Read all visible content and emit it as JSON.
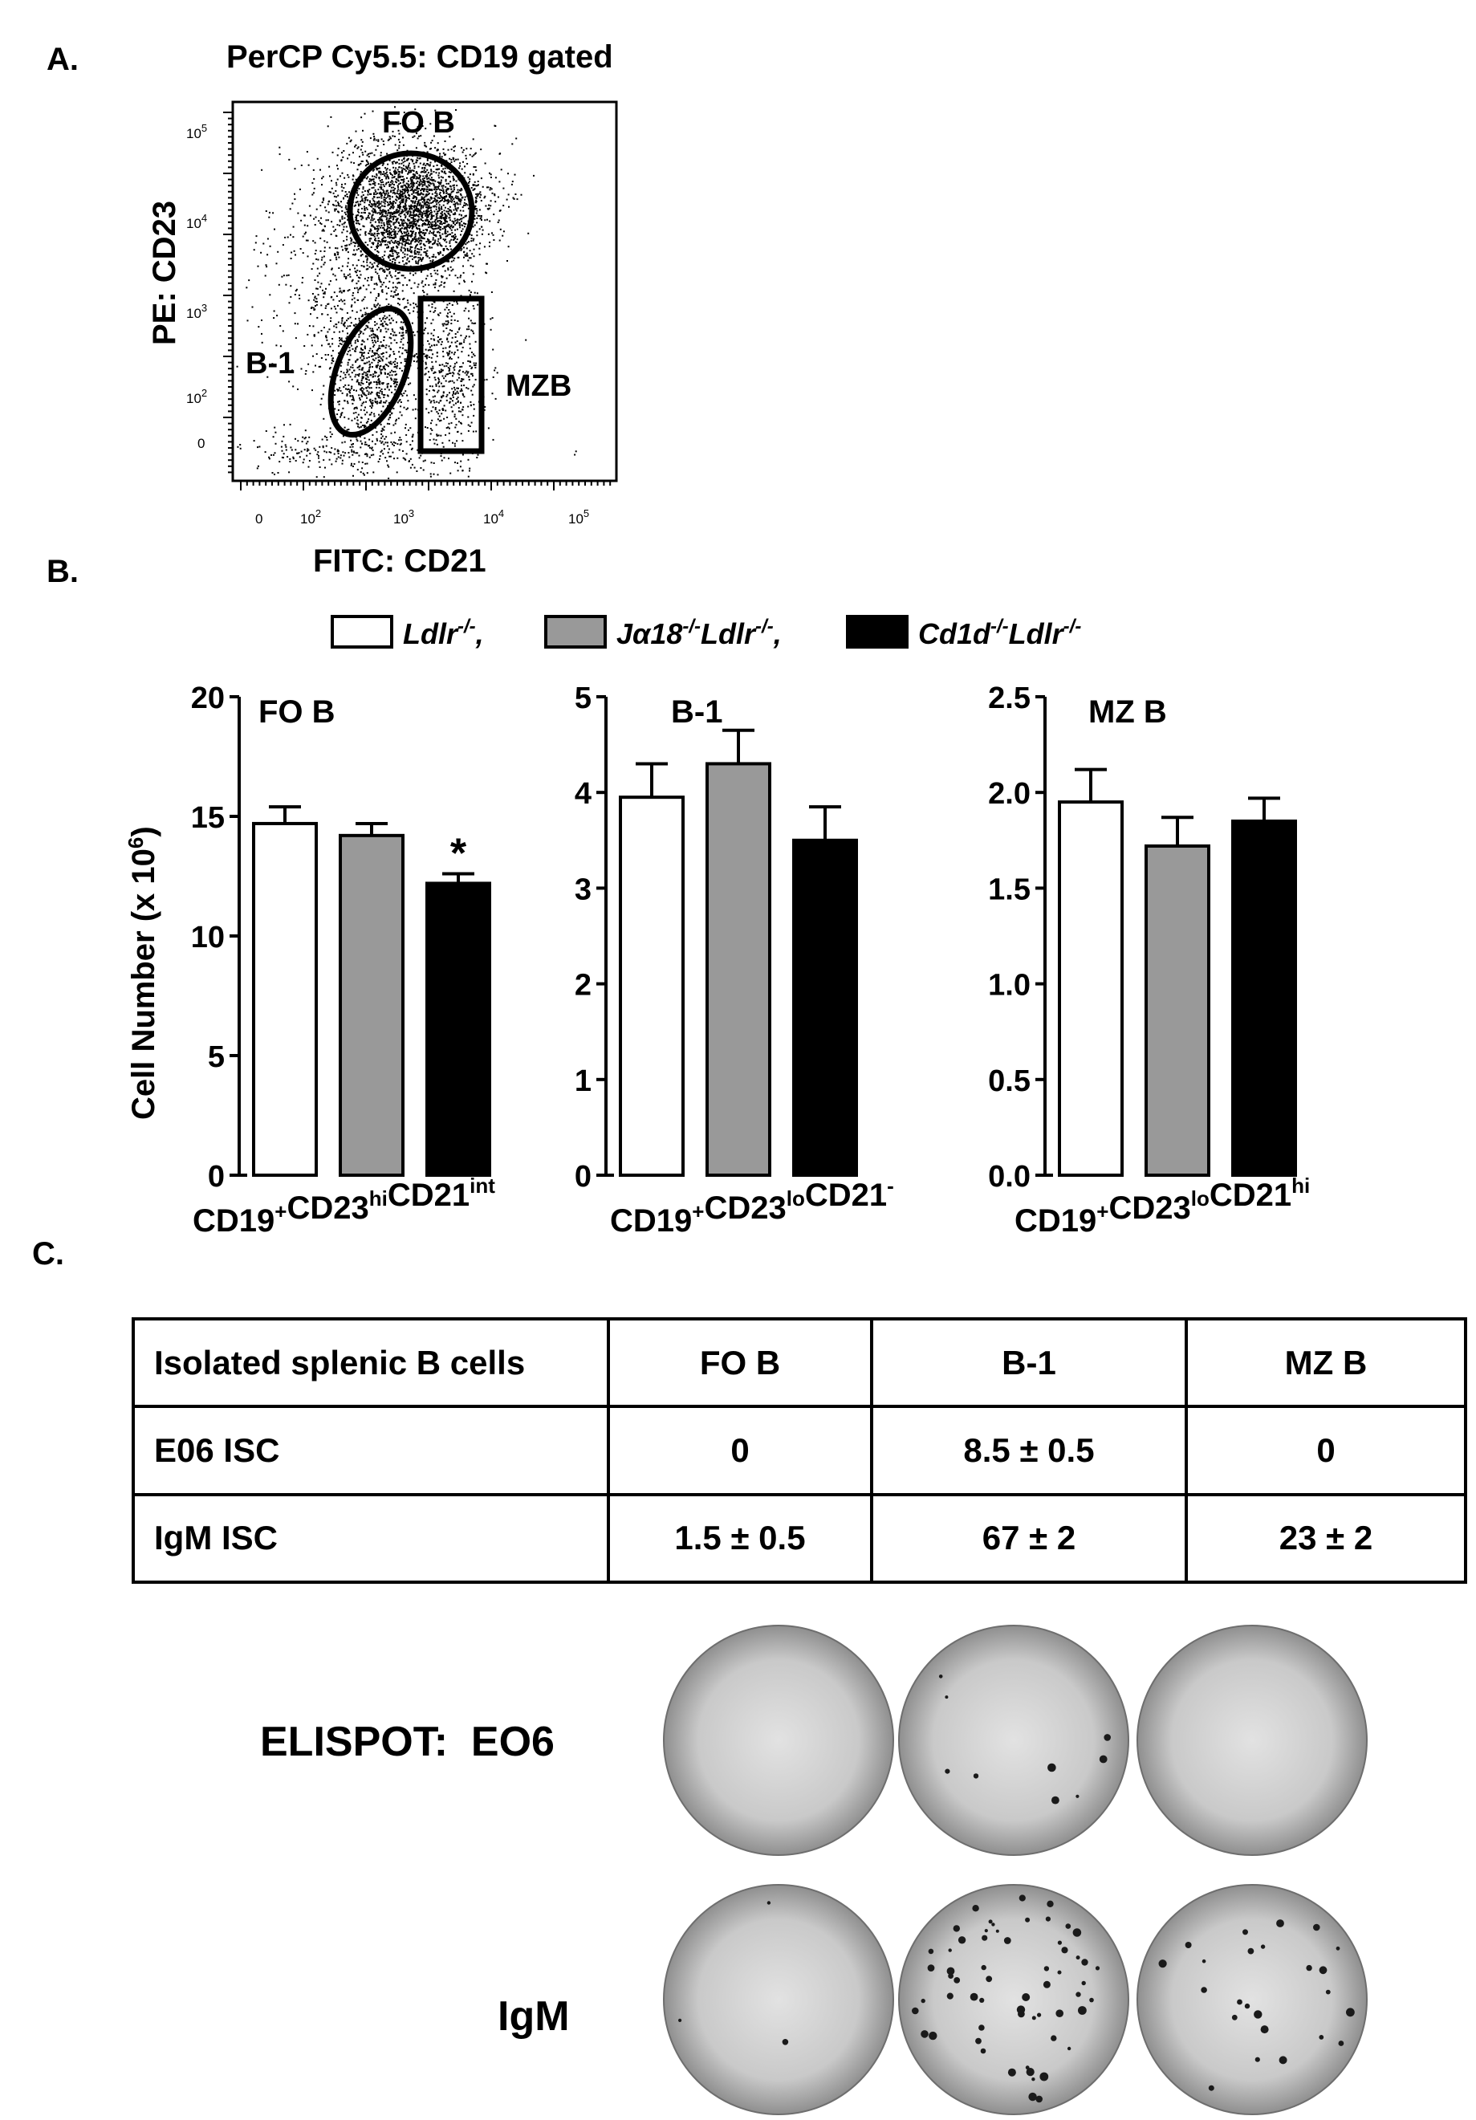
{
  "panel_letters": {
    "a": "A.",
    "b": "B.",
    "c": "C."
  },
  "flow": {
    "title": "PerCP Cy5.5: CD19 gated",
    "ylabel": "PE: CD23",
    "xlabel": "FITC: CD21",
    "gates": {
      "fo": "FO B",
      "b1": "B-1",
      "mz": "MZB"
    },
    "yticks": [
      {
        "base": "10",
        "exp": "5"
      },
      {
        "base": "10",
        "exp": "4"
      },
      {
        "base": "10",
        "exp": "3"
      },
      {
        "base": "10",
        "exp": "2"
      },
      {
        "base": "0",
        "exp": ""
      }
    ],
    "xticks": [
      {
        "base": "0",
        "exp": ""
      },
      {
        "base": "10",
        "exp": "2"
      },
      {
        "base": "10",
        "exp": "3"
      },
      {
        "base": "10",
        "exp": "4"
      },
      {
        "base": "10",
        "exp": "5"
      }
    ]
  },
  "legend": [
    {
      "label": "Ldlr",
      "sup": "-/-",
      "suffix": ",",
      "color": "#ffffff"
    },
    {
      "label": "Jα18",
      "sup": "-/-",
      "label2": "Ldlr",
      "sup2": "-/-",
      "suffix": ",",
      "color": "#999999"
    },
    {
      "label": "Cd1d",
      "sup": "-/-",
      "label2": "Ldlr",
      "sup2": "-/-",
      "suffix": "",
      "color": "#000000"
    }
  ],
  "bar_ylabel": {
    "text": "Cell Number (x 10",
    "sup": "6",
    "close": ")"
  },
  "chart_data": [
    {
      "type": "bar",
      "title": "FO B",
      "xlabel_parts": [
        {
          "t": "CD19",
          "s": "+"
        },
        {
          "t": "CD23",
          "s": "hi"
        },
        {
          "t": "CD21",
          "s": "int"
        }
      ],
      "categories": [
        "Ldlr-/-",
        "Jα18-/-Ldlr-/-",
        "Cd1d-/-Ldlr-/-"
      ],
      "values": [
        14.7,
        14.2,
        12.2
      ],
      "errors": [
        0.7,
        0.5,
        0.4
      ],
      "colors": [
        "#ffffff",
        "#999999",
        "#000000"
      ],
      "annotations": [
        "",
        "",
        "*"
      ],
      "ylim": [
        0,
        20
      ],
      "yticks": [
        "0",
        "5",
        "10",
        "15",
        "20"
      ]
    },
    {
      "type": "bar",
      "title": "B-1",
      "xlabel_parts": [
        {
          "t": "CD19",
          "s": "+"
        },
        {
          "t": "CD23",
          "s": "lo"
        },
        {
          "t": "CD21",
          "s": "-"
        }
      ],
      "categories": [
        "Ldlr-/-",
        "Jα18-/-Ldlr-/-",
        "Cd1d-/-Ldlr-/-"
      ],
      "values": [
        3.95,
        4.3,
        3.5
      ],
      "errors": [
        0.35,
        0.35,
        0.35
      ],
      "colors": [
        "#ffffff",
        "#999999",
        "#000000"
      ],
      "annotations": [
        "",
        "",
        ""
      ],
      "ylim": [
        0,
        5
      ],
      "yticks": [
        "0",
        "1",
        "2",
        "3",
        "4",
        "5"
      ]
    },
    {
      "type": "bar",
      "title": "MZ B",
      "xlabel_parts": [
        {
          "t": "CD19",
          "s": "+"
        },
        {
          "t": "CD23",
          "s": "lo"
        },
        {
          "t": "CD21",
          "s": "hi"
        }
      ],
      "categories": [
        "Ldlr-/-",
        "Jα18-/-Ldlr-/-",
        "Cd1d-/-Ldlr-/-"
      ],
      "values": [
        1.95,
        1.72,
        1.85
      ],
      "errors": [
        0.17,
        0.15,
        0.12
      ],
      "colors": [
        "#ffffff",
        "#999999",
        "#000000"
      ],
      "annotations": [
        "",
        "",
        ""
      ],
      "ylim": [
        0,
        2.5
      ],
      "yticks": [
        "0.0",
        "0.5",
        "1.0",
        "1.5",
        "2.0",
        "2.5"
      ]
    }
  ],
  "table": {
    "header": [
      "Isolated splenic B cells",
      "FO B",
      "B-1",
      "MZ B"
    ],
    "rows": [
      [
        "E06 ISC",
        "0",
        "8.5 ± 0.5",
        "0"
      ],
      [
        "IgM ISC",
        "1.5 ± 0.5",
        "67 ± 2",
        "23 ± 2"
      ]
    ]
  },
  "elispot": {
    "row1_label": "ELISPOT:  EO6",
    "row2_label": "IgM"
  }
}
